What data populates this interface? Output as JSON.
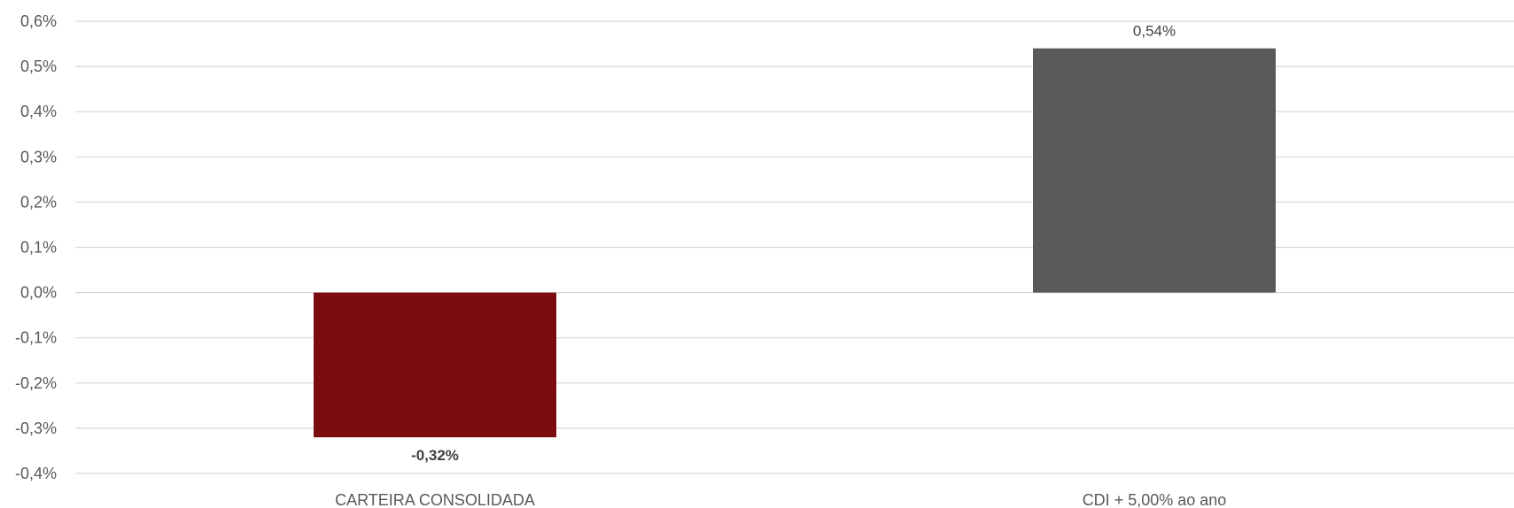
{
  "chart_data": {
    "type": "bar",
    "title": "",
    "xlabel": "",
    "ylabel": "",
    "categories": [
      "CARTEIRA CONSOLIDADA",
      "CDI + 5,00% ao ano"
    ],
    "values": [
      -0.32,
      0.54
    ],
    "data_labels": [
      "-0,32%",
      "0,54%"
    ],
    "data_labels_bold": [
      true,
      false
    ],
    "colors": [
      "#7B0D11",
      "#595959"
    ],
    "ylim": [
      -0.4,
      0.6
    ],
    "yticks": [
      -0.4,
      -0.3,
      -0.2,
      -0.1,
      0.0,
      0.1,
      0.2,
      0.3,
      0.4,
      0.5,
      0.6
    ],
    "ytick_labels": [
      "-0,4%",
      "-0,3%",
      "-0,2%",
      "-0,1%",
      "0,0%",
      "0,1%",
      "0,2%",
      "0,3%",
      "0,4%",
      "0,5%",
      "0,6%"
    ],
    "grid": true,
    "gridline_color": "#D9D9D9"
  }
}
